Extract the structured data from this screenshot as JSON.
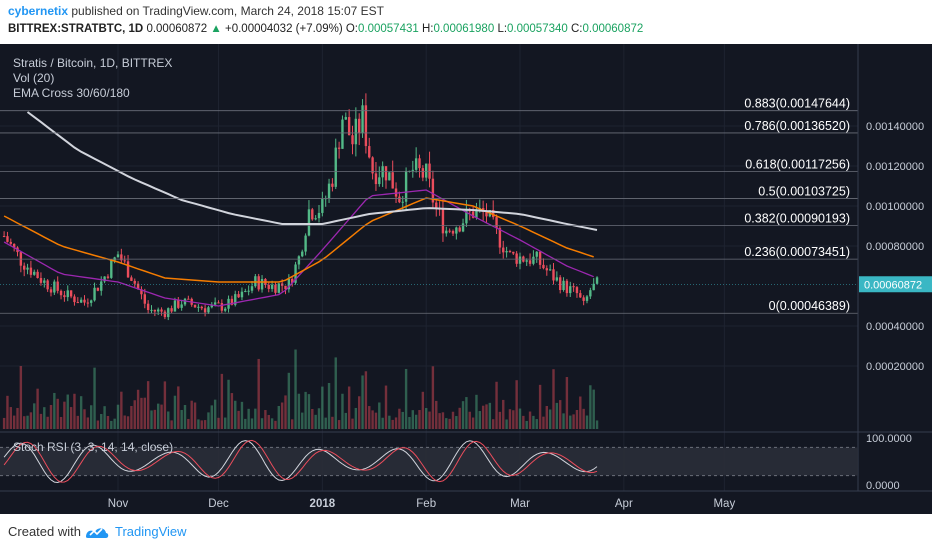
{
  "header": {
    "author": "cybernetix",
    "published_text": "published on TradingView.com, March 24, 2018 15:07 EST",
    "symbol": "BITTREX:STRATBTC, 1D",
    "last": "0.00060872",
    "change": "+0.00004032 (+7.09%)",
    "o_label": "O:",
    "o_value": "0.00057431",
    "h_label": "H:",
    "h_value": "0.00061980",
    "l_label": "L:",
    "l_value": "0.00057340",
    "c_label": "C:",
    "c_value": "0.00060872",
    "up_arrow": "▲"
  },
  "legend": {
    "title": "Stratis / Bitcoin, 1D, BITTREX",
    "vol": "Vol (20)",
    "ema": "EMA Cross 30/60/180",
    "stoch": "Stoch RSI (3, 3, 14, 14, close)"
  },
  "footer": {
    "created_with": "Created with",
    "brand": "TradingView"
  },
  "colors": {
    "background": "#131722",
    "up": "#53b987",
    "down": "#eb4d5c",
    "ema_fast": "#9c27b0",
    "ema_mid": "#f57c00",
    "ema_slow": "#d1d4dc",
    "fib": "#6b6f7a",
    "price_label": "#3ab7c4"
  },
  "chart_data": {
    "type": "candlestick",
    "x_ticks": [
      "Nov",
      "Dec",
      "2018",
      "Feb",
      "Mar",
      "Apr",
      "May"
    ],
    "x_tick_dates": [
      "2017-11-01",
      "2017-12-01",
      "2018-01-01",
      "2018-02-01",
      "2018-03-01",
      "2018-04-01",
      "2018-05-01"
    ],
    "y_axis": {
      "ticks": [
        "0.00140000",
        "0.00120000",
        "0.00100000",
        "0.00080000",
        "0.00040000",
        "0.00020000"
      ],
      "tick_values": [
        0.0014,
        0.0012,
        0.001,
        0.0008,
        0.0004,
        0.0002
      ],
      "current_price_label": "0.00060872",
      "current_price": 0.00060872
    },
    "fib_levels": [
      {
        "ratio": "0.883",
        "label": "0.883(0.00147644)",
        "value": 0.00147644
      },
      {
        "ratio": "0.786",
        "label": "0.786(0.00136520)",
        "value": 0.0013652
      },
      {
        "ratio": "0.618",
        "label": "0.618(0.00117256)",
        "value": 0.00117256
      },
      {
        "ratio": "0.5",
        "label": "0.5(0.00103725)",
        "value": 0.00103725
      },
      {
        "ratio": "0.382",
        "label": "0.382(0.00090193)",
        "value": 0.00090193
      },
      {
        "ratio": "0.236",
        "label": "0.236(0.00073451)",
        "value": 0.00073451
      },
      {
        "ratio": "0",
        "label": "0(0.00046389)",
        "value": 0.00046389
      }
    ],
    "price_path_approx": [
      [
        "2017-09-28",
        0.00085
      ],
      [
        "2017-10-03",
        0.00073
      ],
      [
        "2017-10-10",
        0.00062
      ],
      [
        "2017-10-17",
        0.00055
      ],
      [
        "2017-10-22",
        0.00052
      ],
      [
        "2017-10-27",
        0.00062
      ],
      [
        "2017-11-01",
        0.00076
      ],
      [
        "2017-11-05",
        0.00065
      ],
      [
        "2017-11-10",
        0.00048
      ],
      [
        "2017-11-15",
        0.00047
      ],
      [
        "2017-11-20",
        0.00052
      ],
      [
        "2017-11-27",
        0.00049
      ],
      [
        "2017-12-03",
        0.0005
      ],
      [
        "2017-12-08",
        0.00055
      ],
      [
        "2017-12-12",
        0.00062
      ],
      [
        "2017-12-17",
        0.0006
      ],
      [
        "2017-12-22",
        0.00061
      ],
      [
        "2017-12-25",
        0.00074
      ],
      [
        "2017-12-28",
        0.00098
      ],
      [
        "2018-01-01",
        0.00099
      ],
      [
        "2018-01-04",
        0.00115
      ],
      [
        "2018-01-07",
        0.00145
      ],
      [
        "2018-01-10",
        0.00132
      ],
      [
        "2018-01-13",
        0.00144
      ],
      [
        "2018-01-16",
        0.00118
      ],
      [
        "2018-01-20",
        0.00118
      ],
      [
        "2018-01-24",
        0.00105
      ],
      [
        "2018-01-28",
        0.00118
      ],
      [
        "2018-02-01",
        0.00115
      ],
      [
        "2018-02-04",
        0.00098
      ],
      [
        "2018-02-07",
        0.00088
      ],
      [
        "2018-02-11",
        0.00092
      ],
      [
        "2018-02-15",
        0.00097
      ],
      [
        "2018-02-19",
        0.00096
      ],
      [
        "2018-02-22",
        0.00086
      ],
      [
        "2018-02-26",
        0.00075
      ],
      [
        "2018-03-02",
        0.00074
      ],
      [
        "2018-03-06",
        0.00073
      ],
      [
        "2018-03-10",
        0.00066
      ],
      [
        "2018-03-14",
        0.0006
      ],
      [
        "2018-03-18",
        0.00056
      ],
      [
        "2018-03-20",
        0.0005
      ],
      [
        "2018-03-22",
        0.00058
      ],
      [
        "2018-03-24",
        0.00060872
      ]
    ],
    "ema_fast_approx": [
      [
        "2017-09-28",
        0.00082
      ],
      [
        "2017-10-15",
        0.00066
      ],
      [
        "2017-11-01",
        0.00062
      ],
      [
        "2017-11-15",
        0.00054
      ],
      [
        "2017-12-01",
        0.0005
      ],
      [
        "2017-12-20",
        0.00056
      ],
      [
        "2018-01-01",
        0.00078
      ],
      [
        "2018-01-15",
        0.00105
      ],
      [
        "2018-02-01",
        0.00108
      ],
      [
        "2018-02-15",
        0.00095
      ],
      [
        "2018-03-01",
        0.00083
      ],
      [
        "2018-03-15",
        0.0007
      ],
      [
        "2018-03-24",
        0.00064
      ]
    ],
    "ema_mid_approx": [
      [
        "2017-09-28",
        0.00095
      ],
      [
        "2017-10-15",
        0.0008
      ],
      [
        "2017-11-01",
        0.00072
      ],
      [
        "2017-11-15",
        0.00064
      ],
      [
        "2017-12-01",
        0.00062
      ],
      [
        "2017-12-20",
        0.00062
      ],
      [
        "2018-01-01",
        0.00073
      ],
      [
        "2018-01-15",
        0.00092
      ],
      [
        "2018-02-01",
        0.00104
      ],
      [
        "2018-02-15",
        0.001
      ],
      [
        "2018-03-01",
        0.0009
      ],
      [
        "2018-03-15",
        0.00079
      ],
      [
        "2018-03-24",
        0.00074
      ]
    ],
    "ema_slow_approx": [
      [
        "2017-10-05",
        0.00147
      ],
      [
        "2017-10-20",
        0.00128
      ],
      [
        "2017-11-05",
        0.00114
      ],
      [
        "2017-11-20",
        0.00103
      ],
      [
        "2017-12-05",
        0.00096
      ],
      [
        "2017-12-20",
        0.00091
      ],
      [
        "2018-01-01",
        0.00091
      ],
      [
        "2018-01-15",
        0.00096
      ],
      [
        "2018-02-01",
        0.00099
      ],
      [
        "2018-02-15",
        0.00098
      ],
      [
        "2018-03-01",
        0.00096
      ],
      [
        "2018-03-15",
        0.00091
      ],
      [
        "2018-03-24",
        0.00088
      ]
    ],
    "stoch_rsi": {
      "ticks": [
        "100.0000",
        "0.0000"
      ],
      "tick_values": [
        100,
        0
      ],
      "band": [
        20,
        80
      ]
    }
  }
}
